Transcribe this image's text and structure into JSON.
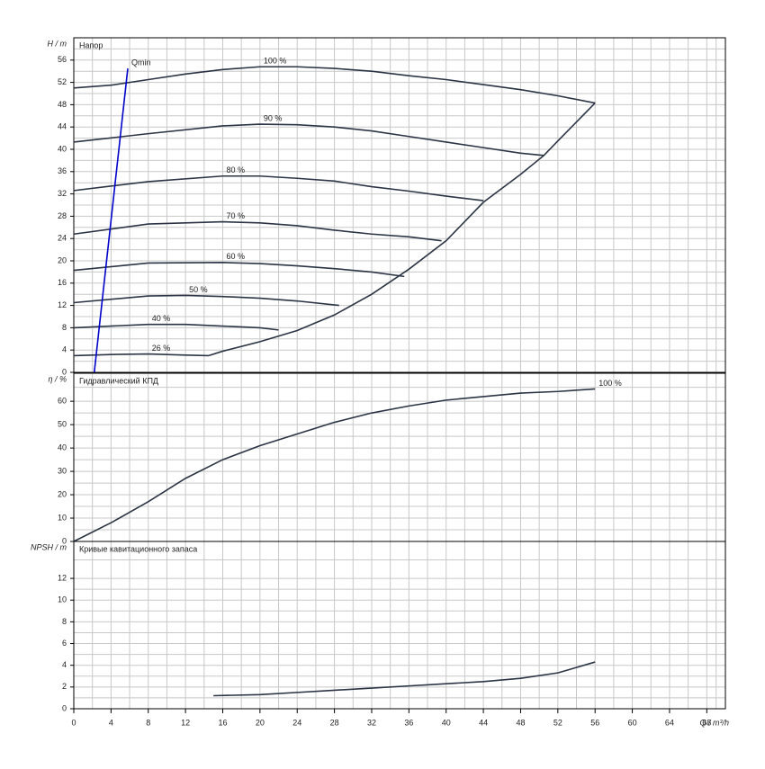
{
  "chart_data": [
    {
      "type": "line",
      "title": "Напор",
      "ylabel": "H / m",
      "xlim": [
        0,
        70
      ],
      "ylim": [
        0,
        60
      ],
      "yticks": [
        0,
        4,
        8,
        12,
        16,
        20,
        24,
        28,
        32,
        36,
        40,
        44,
        48,
        52,
        56
      ],
      "grid": true,
      "series": [
        {
          "name": "100 %",
          "color": "#2b3445",
          "x": [
            0,
            4,
            8,
            12,
            16,
            20,
            24,
            28,
            32,
            36,
            40,
            44,
            48,
            52,
            56
          ],
          "values": [
            51,
            51.5,
            52.5,
            53.5,
            54.3,
            54.8,
            54.8,
            54.5,
            54,
            53.2,
            52.5,
            51.6,
            50.7,
            49.6,
            48.3
          ]
        },
        {
          "name": "90 %",
          "color": "#2b3445",
          "x": [
            0,
            8,
            16,
            20,
            24,
            28,
            32,
            36,
            40,
            44,
            48,
            50.5
          ],
          "values": [
            41.3,
            42.8,
            44.2,
            44.5,
            44.4,
            44,
            43.3,
            42.3,
            41.3,
            40.3,
            39.3,
            38.9
          ]
        },
        {
          "name": "80 %",
          "color": "#2b3445",
          "x": [
            0,
            8,
            16,
            20,
            24,
            28,
            32,
            36,
            40,
            44
          ],
          "values": [
            32.6,
            34.2,
            35.2,
            35.2,
            34.8,
            34.3,
            33.3,
            32.5,
            31.6,
            30.8
          ]
        },
        {
          "name": "70 %",
          "color": "#2b3445",
          "x": [
            0,
            8,
            16,
            20,
            24,
            28,
            32,
            36,
            39.5
          ],
          "values": [
            24.8,
            26.6,
            27,
            26.8,
            26.3,
            25.5,
            24.8,
            24.3,
            23.6
          ]
        },
        {
          "name": "60 %",
          "color": "#2b3445",
          "x": [
            0,
            8,
            16,
            20,
            24,
            28,
            32,
            35.5
          ],
          "values": [
            18.3,
            19.6,
            19.7,
            19.5,
            19.1,
            18.6,
            18,
            17.2
          ]
        },
        {
          "name": "50 %",
          "color": "#2b3445",
          "x": [
            0,
            8,
            12,
            16,
            20,
            24,
            28.5
          ],
          "values": [
            12.5,
            13.7,
            13.8,
            13.6,
            13.3,
            12.8,
            12
          ]
        },
        {
          "name": "40 %",
          "color": "#2b3445",
          "x": [
            0,
            8,
            12,
            16,
            20,
            22
          ],
          "values": [
            8,
            8.6,
            8.6,
            8.3,
            8,
            7.6
          ]
        },
        {
          "name": "26 %",
          "color": "#2b3445",
          "x": [
            0,
            4,
            8,
            12,
            14.5
          ],
          "values": [
            3,
            3.2,
            3.3,
            3.1,
            3
          ]
        },
        {
          "color": "#2b3445",
          "x": [
            14.5,
            16,
            20,
            24,
            28,
            32,
            36,
            40,
            44,
            48,
            50.5,
            52,
            56
          ],
          "values": [
            3,
            3.8,
            5.5,
            7.5,
            10.3,
            14,
            18.5,
            23.6,
            30.5,
            35.5,
            38.9,
            41.5,
            48.3
          ]
        },
        {
          "name": "Qmin",
          "color": "#0000cc",
          "x": [
            2.2,
            5.8
          ],
          "values": [
            0,
            54.5
          ]
        }
      ]
    },
    {
      "type": "line",
      "title": "Гидравлический КПД",
      "ylabel": "η / %",
      "xlim": [
        0,
        70
      ],
      "ylim": [
        0,
        72
      ],
      "yticks": [
        0,
        10,
        20,
        30,
        40,
        50,
        60
      ],
      "grid": true,
      "series": [
        {
          "name": "100 %",
          "color": "#2b3445",
          "x": [
            0,
            4,
            8,
            10,
            12,
            16,
            20,
            24,
            28,
            32,
            36,
            40,
            44,
            48,
            52,
            56
          ],
          "values": [
            0,
            8,
            17,
            22,
            27,
            35,
            41,
            46,
            51,
            55,
            58,
            60.5,
            62,
            63.5,
            64.2,
            65.3
          ]
        }
      ]
    },
    {
      "type": "line",
      "title": "Кривые кавитационного запаса",
      "ylabel": "NPSH / m",
      "xlabel": "Q / m³/h",
      "xlim": [
        0,
        70
      ],
      "ylim": [
        0,
        15.4
      ],
      "xticks": [
        0,
        4,
        8,
        12,
        16,
        20,
        24,
        28,
        32,
        36,
        40,
        44,
        48,
        52,
        56,
        60,
        64,
        68
      ],
      "yticks": [
        0,
        2,
        4,
        6,
        8,
        10,
        12
      ],
      "grid": true,
      "series": [
        {
          "color": "#2b3445",
          "x": [
            15,
            20,
            24,
            28,
            32,
            36,
            40,
            44,
            48,
            52,
            56
          ],
          "values": [
            1.2,
            1.3,
            1.5,
            1.7,
            1.9,
            2.1,
            2.3,
            2.5,
            2.8,
            3.3,
            4.3
          ]
        }
      ]
    }
  ]
}
